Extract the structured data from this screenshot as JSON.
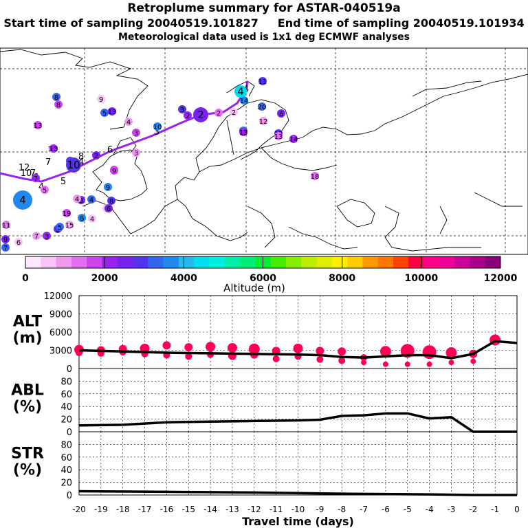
{
  "titles": {
    "line1": "Retroplume summary for ASTAR-040519a",
    "line2": "Start time of sampling 20040519.101827     End time of sampling 20040519.101934",
    "line3": "Meteorological data used is 1x1 deg ECMWF analyses"
  },
  "colorbar": {
    "label": "Altitude (m)",
    "tick_labels": [
      "0",
      "2000",
      "4000",
      "6000",
      "8000",
      "10000",
      "12000"
    ],
    "range": [
      0,
      12000
    ],
    "colors": [
      "#ffe6ff",
      "#f8c4f8",
      "#ee99ee",
      "#e070f0",
      "#cc44ee",
      "#9922ee",
      "#7722ee",
      "#5533ee",
      "#3366ee",
      "#2288ee",
      "#22bbee",
      "#00ddee",
      "#00eedd",
      "#00eeaa",
      "#00ee77",
      "#00ee33",
      "#44ee00",
      "#88ee00",
      "#bbee00",
      "#ddee00",
      "#ffee00",
      "#ffcc00",
      "#ff9900",
      "#ff7700",
      "#ff4400",
      "#ff0044",
      "#ff0088",
      "#ee0099",
      "#cc0099",
      "#aa0088",
      "#880077"
    ]
  },
  "map": {
    "trajectory_labels": [
      "4",
      "2",
      "3",
      "6",
      "4",
      "5",
      "4",
      "7",
      "6",
      "7",
      "8",
      "10",
      "12"
    ],
    "cluster_markers": [
      {
        "label": "4",
        "lon": -20,
        "alt": 3500
      },
      {
        "label": "10",
        "lon": -15,
        "alt": 3000
      },
      {
        "label": "2",
        "lon": -5,
        "alt": 2500
      },
      {
        "label": "4",
        "lon": 0,
        "alt": 4500
      }
    ],
    "scattered_labels": [
      "9",
      "5",
      "13",
      "8",
      "4",
      "10",
      "3",
      "2",
      "2",
      "2",
      "20",
      "6",
      "13",
      "12",
      "15",
      "13",
      "14",
      "18",
      "13",
      "8",
      "2",
      "9",
      "3",
      "9",
      "8",
      "7",
      "5",
      "6",
      "4",
      "3",
      "19",
      "15",
      "6",
      "5",
      "3",
      "11",
      "6",
      "7",
      "9",
      "3",
      "7",
      "14",
      "11",
      "13",
      "13",
      "4",
      "5",
      "6",
      "9",
      "4",
      "2",
      "6",
      "13"
    ]
  },
  "chart_data": [
    {
      "type": "line",
      "name": "ALT",
      "ylabel_line1": "ALT",
      "ylabel_line2": "(m)",
      "yticks": [
        "0",
        "3000",
        "6000",
        "9000",
        "12000"
      ],
      "ylim": [
        0,
        12000
      ],
      "x": [
        -20,
        -19,
        -18,
        -17,
        -16,
        -15,
        -14,
        -13,
        -12,
        -11,
        -10,
        -9,
        -8,
        -7,
        -6,
        -5,
        -4,
        -3,
        -2,
        -1,
        0
      ],
      "values": [
        3000,
        2900,
        2800,
        2700,
        2600,
        2550,
        2500,
        2450,
        2400,
        2350,
        2300,
        2200,
        1900,
        1800,
        2000,
        2200,
        2200,
        1700,
        2400,
        4500,
        4200
      ],
      "scatter_points": [
        [
          -20,
          3100
        ],
        [
          -20,
          2600
        ],
        [
          -19,
          3000
        ],
        [
          -19,
          2500
        ],
        [
          -18,
          3200
        ],
        [
          -18,
          2700
        ],
        [
          -17,
          3300
        ],
        [
          -17,
          2400
        ],
        [
          -16,
          3800
        ],
        [
          -16,
          2200
        ],
        [
          -15,
          3500
        ],
        [
          -15,
          2000
        ],
        [
          -14,
          3600
        ],
        [
          -14,
          2300
        ],
        [
          -13,
          3400
        ],
        [
          -13,
          2100
        ],
        [
          -12,
          3200
        ],
        [
          -12,
          2300
        ],
        [
          -11,
          2900
        ],
        [
          -11,
          1600
        ],
        [
          -10,
          3300
        ],
        [
          -10,
          2000
        ],
        [
          -9,
          2900
        ],
        [
          -9,
          1500
        ],
        [
          -8,
          2800
        ],
        [
          -8,
          1300
        ],
        [
          -7,
          1800
        ],
        [
          -7,
          1000
        ],
        [
          -6,
          2800
        ],
        [
          -6,
          700
        ],
        [
          -5,
          2900
        ],
        [
          -5,
          700
        ],
        [
          -4,
          2700
        ],
        [
          -4,
          700
        ],
        [
          -3,
          2600
        ],
        [
          -3,
          1000
        ],
        [
          -2,
          2400
        ],
        [
          -2,
          1200
        ],
        [
          -1,
          4700
        ]
      ],
      "scatter_sizes": [
        7,
        5,
        6,
        5,
        6,
        5,
        7,
        5,
        6,
        5,
        6,
        5,
        7,
        5,
        7,
        6,
        8,
        6,
        6,
        5,
        7,
        5,
        6,
        5,
        6,
        5,
        5,
        4,
        8,
        4,
        10,
        4,
        10,
        4,
        8,
        4,
        6,
        4,
        8
      ]
    },
    {
      "type": "line",
      "name": "ABL",
      "ylabel_line1": "ABL",
      "ylabel_line2": "(%)",
      "yticks": [
        "0",
        "20",
        "40",
        "60",
        "80"
      ],
      "ylim": [
        0,
        100
      ],
      "x": [
        -20,
        -18,
        -16,
        -14,
        -12,
        -10,
        -9,
        -8,
        -7,
        -6,
        -5,
        -4,
        -3,
        -2,
        -1,
        0
      ],
      "values": [
        10,
        11,
        15,
        16,
        17,
        18,
        19,
        25,
        26,
        29,
        29,
        21,
        23,
        0,
        0,
        0
      ]
    },
    {
      "type": "line",
      "name": "STR",
      "ylabel_line1": "STR",
      "ylabel_line2": "(%)",
      "yticks": [
        "0",
        "20",
        "40",
        "60",
        "80"
      ],
      "ylim": [
        0,
        100
      ],
      "x": [
        -20,
        -16,
        -12,
        -8,
        -4,
        -2,
        0
      ],
      "values": [
        6,
        5,
        4,
        2,
        1,
        0,
        0
      ]
    }
  ],
  "xaxis": {
    "label": "Travel time (days)",
    "tick_labels": [
      "-20",
      "-19",
      "-18",
      "-17",
      "-16",
      "-15",
      "-14",
      "-13",
      "-12",
      "-11",
      "-10",
      "-9",
      "-8",
      "-7",
      "-6",
      "-5",
      "-4",
      "-3",
      "-2",
      "-1",
      "0"
    ]
  }
}
